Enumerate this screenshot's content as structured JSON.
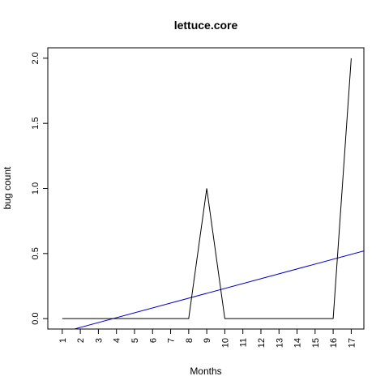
{
  "chart_data": {
    "type": "line",
    "title": "lettuce.core",
    "xlabel": "Months",
    "ylabel": "bug count",
    "x_ticks": [
      "1",
      "2",
      "3",
      "4",
      "5",
      "6",
      "7",
      "8",
      "9",
      "10",
      "11",
      "12",
      "13",
      "14",
      "15",
      "16",
      "17"
    ],
    "y_ticks": [
      "0.0",
      "0.5",
      "1.0",
      "1.5",
      "2.0"
    ],
    "xlim": [
      0.2,
      17.7
    ],
    "ylim": [
      -0.08,
      2.08
    ],
    "grid": false,
    "series": [
      {
        "x": [
          1,
          2,
          3,
          4,
          5,
          6,
          7,
          8,
          9,
          10,
          11,
          12,
          13,
          14,
          15,
          16,
          17
        ],
        "values": [
          0,
          0,
          0,
          0,
          0,
          0,
          0,
          0,
          1,
          0,
          0,
          0,
          0,
          0,
          0,
          0,
          2
        ],
        "color": "#000000"
      }
    ],
    "trend_line": {
      "color": "#0000cc",
      "x": [
        0.2,
        17.7
      ],
      "values": [
        -0.135,
        0.52
      ]
    }
  }
}
